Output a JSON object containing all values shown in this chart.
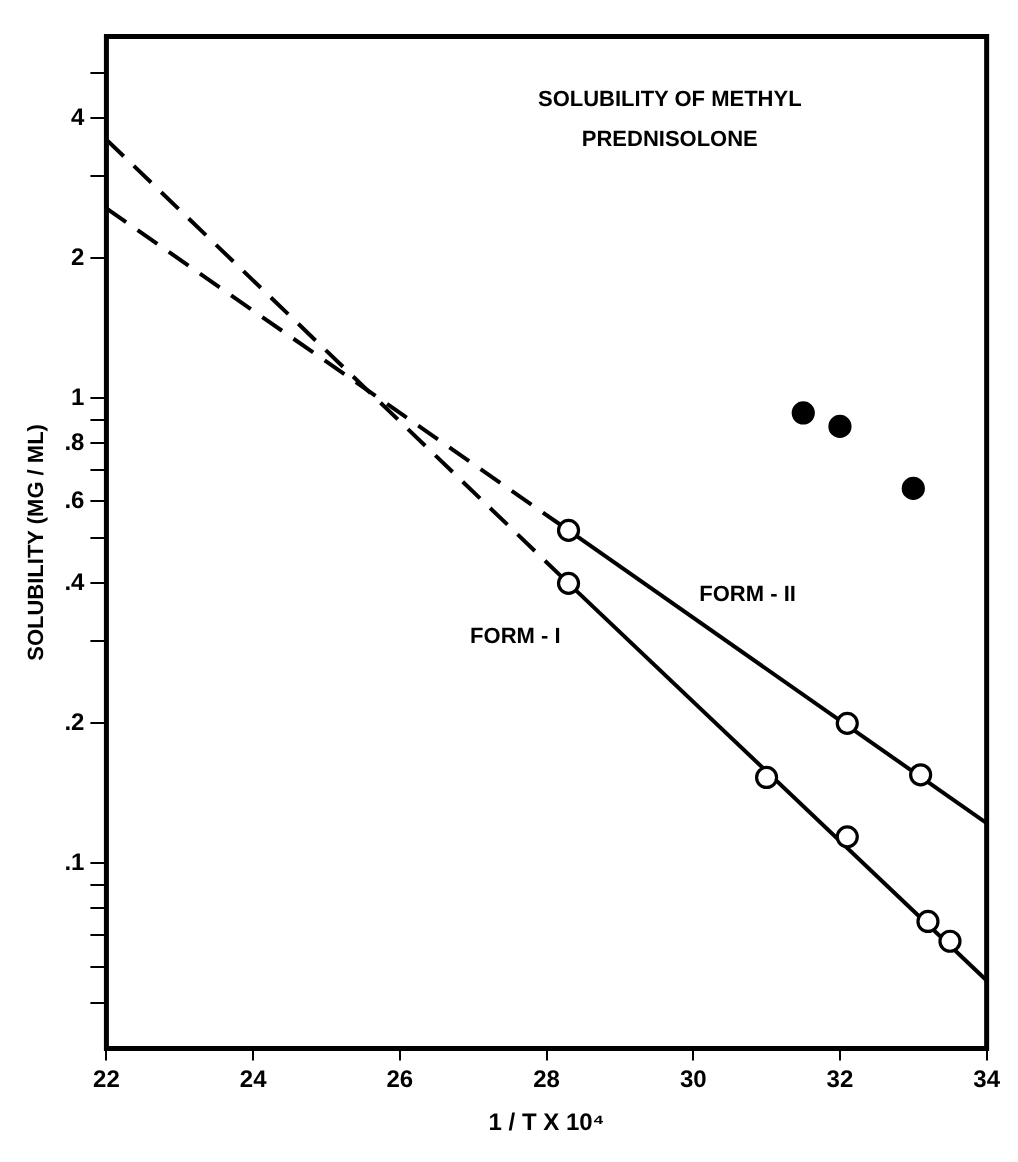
{
  "chart_data": {
    "type": "line",
    "title": "SOLUBILITY OF METHYL PREDNISOLONE",
    "xlabel": "1 / T X 10⁴",
    "ylabel": "SOLUBILITY (MG / ML)",
    "log": "y",
    "grid": false,
    "legend": false,
    "xlim": [
      22,
      34
    ],
    "xticks": [
      22,
      24,
      26,
      28,
      30,
      32,
      34
    ],
    "ylim": [
      0.04,
      6
    ],
    "yticks": [
      {
        "value": 0.05,
        "label": null
      },
      {
        "value": 0.06,
        "label": null
      },
      {
        "value": 0.07,
        "label": null
      },
      {
        "value": 0.08,
        "label": null
      },
      {
        "value": 0.09,
        "label": null
      },
      {
        "value": 0.1,
        "label": ".1"
      },
      {
        "value": 0.2,
        "label": ".2"
      },
      {
        "value": 0.3,
        "label": null
      },
      {
        "value": 0.4,
        "label": ".4"
      },
      {
        "value": 0.5,
        "label": null
      },
      {
        "value": 0.6,
        "label": ".6"
      },
      {
        "value": 0.7,
        "label": null
      },
      {
        "value": 0.8,
        "label": ".8"
      },
      {
        "value": 0.9,
        "label": null
      },
      {
        "value": 1,
        "label": "1"
      },
      {
        "value": 2,
        "label": "2"
      },
      {
        "value": 3,
        "label": null
      },
      {
        "value": 4,
        "label": "4"
      },
      {
        "value": 5,
        "label": null
      }
    ],
    "series": [
      {
        "type": "scatter",
        "marker": "circle",
        "color": "#000000",
        "x": [
          28.3,
          32.1,
          33.1
        ],
        "values": [
          0.52,
          0.2,
          0.155
        ]
      },
      {
        "name": "FORM - II",
        "type": "line",
        "line_style": "solid",
        "marker": "none",
        "color": "#000000",
        "x": [
          28.3,
          34
        ],
        "values": [
          0.52,
          0.122
        ]
      },
      {
        "type": "line",
        "line_style": "dashed",
        "marker": "none",
        "color": "#000000",
        "x": [
          22,
          28.3
        ],
        "values": [
          2.56,
          0.52
        ]
      },
      {
        "type": "scatter",
        "marker": "circle",
        "color": "#000000",
        "x": [
          28.3,
          31.0,
          32.1,
          33.2,
          33.5
        ],
        "values": [
          0.4,
          0.153,
          0.114,
          0.075,
          0.068
        ]
      },
      {
        "name": "FORM - I",
        "type": "line",
        "line_style": "solid",
        "marker": "none",
        "color": "#000000",
        "x": [
          28.3,
          34
        ],
        "values": [
          0.4,
          0.056
        ]
      },
      {
        "type": "line",
        "line_style": "dashed",
        "marker": "none",
        "color": "#000000",
        "x": [
          22,
          28.3
        ],
        "values": [
          3.6,
          0.4
        ]
      },
      {
        "type": "scatter",
        "marker": "circle",
        "color": "#000000",
        "x": [
          31.5,
          32.0,
          33.0
        ],
        "values": [
          0.93,
          0.87,
          0.64
        ]
      }
    ]
  }
}
